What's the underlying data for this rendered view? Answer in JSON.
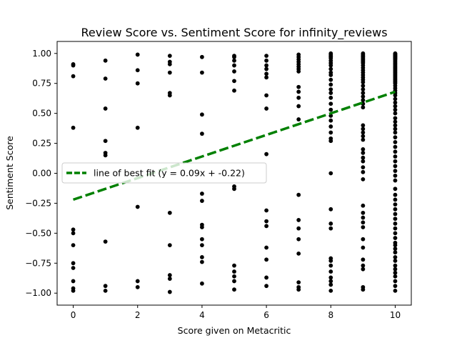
{
  "chart_data": {
    "type": "scatter",
    "title": "Review Score vs. Sentiment Score for infinity_reviews",
    "xlabel": "Score given on Metacritic",
    "ylabel": "Sentiment Score",
    "xlim": [
      -0.5,
      10.5
    ],
    "ylim": [
      -1.1,
      1.1
    ],
    "xticks": [
      0,
      2,
      4,
      6,
      8,
      10
    ],
    "yticks": [
      -1.0,
      -0.75,
      -0.5,
      -0.25,
      0.0,
      0.25,
      0.5,
      0.75,
      1.0
    ],
    "xtick_labels": [
      "0",
      "2",
      "4",
      "6",
      "8",
      "10"
    ],
    "ytick_labels": [
      "−1.00",
      "−0.75",
      "−0.50",
      "−0.25",
      "0.00",
      "0.25",
      "0.50",
      "0.75",
      "1.00"
    ],
    "grid": false,
    "legend_position": "center-left",
    "points_color": "#000000",
    "series": [
      {
        "type": "scatter",
        "points": [
          [
            0,
            0.91
          ],
          [
            0,
            0.9
          ],
          [
            0,
            0.81
          ],
          [
            0,
            0.38
          ],
          [
            0,
            -0.47
          ],
          [
            0,
            -0.5
          ],
          [
            0,
            -0.6
          ],
          [
            0,
            -0.75
          ],
          [
            0,
            -0.79
          ],
          [
            0,
            -0.9
          ],
          [
            0,
            -0.96
          ],
          [
            0,
            -0.98
          ],
          [
            1,
            0.94
          ],
          [
            1,
            0.79
          ],
          [
            1,
            0.54
          ],
          [
            1,
            0.27
          ],
          [
            1,
            0.17
          ],
          [
            1,
            0.15
          ],
          [
            1,
            -0.57
          ],
          [
            1,
            -0.94
          ],
          [
            1,
            -0.98
          ],
          [
            2,
            0.99
          ],
          [
            2,
            0.86
          ],
          [
            2,
            0.75
          ],
          [
            2,
            0.38
          ],
          [
            2,
            -0.28
          ],
          [
            2,
            -0.9
          ],
          [
            2,
            -0.95
          ],
          [
            3,
            0.98
          ],
          [
            3,
            0.93
          ],
          [
            3,
            0.91
          ],
          [
            3,
            0.84
          ],
          [
            3,
            0.67
          ],
          [
            3,
            0.65
          ],
          [
            3,
            -0.33
          ],
          [
            3,
            -0.6
          ],
          [
            3,
            -0.85
          ],
          [
            3,
            -0.88
          ],
          [
            3,
            -0.99
          ],
          [
            4,
            0.97
          ],
          [
            4,
            0.84
          ],
          [
            4,
            0.49
          ],
          [
            4,
            0.33
          ],
          [
            4,
            -0.17
          ],
          [
            4,
            -0.23
          ],
          [
            4,
            -0.43
          ],
          [
            4,
            -0.45
          ],
          [
            4,
            -0.55
          ],
          [
            4,
            -0.6
          ],
          [
            4,
            -0.7
          ],
          [
            4,
            -0.74
          ],
          [
            4,
            -0.92
          ],
          [
            5,
            0.98
          ],
          [
            5,
            0.97
          ],
          [
            5,
            0.94
          ],
          [
            5,
            0.9
          ],
          [
            5,
            0.85
          ],
          [
            5,
            0.77
          ],
          [
            5,
            0.69
          ],
          [
            5,
            -0.11
          ],
          [
            5,
            -0.13
          ],
          [
            5,
            -0.77
          ],
          [
            5,
            -0.82
          ],
          [
            5,
            -0.86
          ],
          [
            5,
            -0.9
          ],
          [
            5,
            -0.97
          ],
          [
            6,
            0.98
          ],
          [
            6,
            0.94
          ],
          [
            6,
            0.9
          ],
          [
            6,
            0.87
          ],
          [
            6,
            0.83
          ],
          [
            6,
            0.8
          ],
          [
            6,
            0.65
          ],
          [
            6,
            0.54
          ],
          [
            6,
            0.16
          ],
          [
            6,
            -0.31
          ],
          [
            6,
            -0.4
          ],
          [
            6,
            -0.44
          ],
          [
            6,
            -0.62
          ],
          [
            6,
            -0.72
          ],
          [
            6,
            -0.87
          ],
          [
            6,
            -0.94
          ],
          [
            7,
            0.99
          ],
          [
            7,
            0.97
          ],
          [
            7,
            0.95
          ],
          [
            7,
            0.93
          ],
          [
            7,
            0.91
          ],
          [
            7,
            0.89
          ],
          [
            7,
            0.87
          ],
          [
            7,
            0.85
          ],
          [
            7,
            0.72
          ],
          [
            7,
            0.68
          ],
          [
            7,
            0.63
          ],
          [
            7,
            0.56
          ],
          [
            7,
            0.45
          ],
          [
            7,
            -0.18
          ],
          [
            7,
            -0.39
          ],
          [
            7,
            -0.46
          ],
          [
            7,
            -0.55
          ],
          [
            7,
            -0.67
          ],
          [
            7,
            -0.91
          ],
          [
            7,
            -0.95
          ],
          [
            7,
            -0.97
          ],
          [
            8,
            1.0
          ],
          [
            8,
            0.99
          ],
          [
            8,
            0.98
          ],
          [
            8,
            0.97
          ],
          [
            8,
            0.96
          ],
          [
            8,
            0.94
          ],
          [
            8,
            0.92
          ],
          [
            8,
            0.9
          ],
          [
            8,
            0.87
          ],
          [
            8,
            0.84
          ],
          [
            8,
            0.82
          ],
          [
            8,
            0.78
          ],
          [
            8,
            0.74
          ],
          [
            8,
            0.7
          ],
          [
            8,
            0.67
          ],
          [
            8,
            0.63
          ],
          [
            8,
            0.58
          ],
          [
            8,
            0.53
          ],
          [
            8,
            0.48
          ],
          [
            8,
            0.44
          ],
          [
            8,
            0.39
          ],
          [
            8,
            0.34
          ],
          [
            8,
            0.29
          ],
          [
            8,
            0.27
          ],
          [
            8,
            0.0
          ],
          [
            8,
            -0.3
          ],
          [
            8,
            -0.42
          ],
          [
            8,
            -0.46
          ],
          [
            8,
            -0.71
          ],
          [
            8,
            -0.73
          ],
          [
            8,
            -0.77
          ],
          [
            8,
            -0.82
          ],
          [
            8,
            -0.87
          ],
          [
            8,
            -0.9
          ],
          [
            8,
            -0.93
          ],
          [
            8,
            -0.98
          ],
          [
            9,
            1.0
          ],
          [
            9,
            0.99
          ],
          [
            9,
            0.98
          ],
          [
            9,
            0.97
          ],
          [
            9,
            0.96
          ],
          [
            9,
            0.95
          ],
          [
            9,
            0.94
          ],
          [
            9,
            0.93
          ],
          [
            9,
            0.92
          ],
          [
            9,
            0.9
          ],
          [
            9,
            0.88
          ],
          [
            9,
            0.86
          ],
          [
            9,
            0.84
          ],
          [
            9,
            0.82
          ],
          [
            9,
            0.8
          ],
          [
            9,
            0.78
          ],
          [
            9,
            0.76
          ],
          [
            9,
            0.73
          ],
          [
            9,
            0.7
          ],
          [
            9,
            0.67
          ],
          [
            9,
            0.64
          ],
          [
            9,
            0.61
          ],
          [
            9,
            0.58
          ],
          [
            9,
            0.55
          ],
          [
            9,
            0.4
          ],
          [
            9,
            0.37
          ],
          [
            9,
            0.34
          ],
          [
            9,
            0.31
          ],
          [
            9,
            0.28
          ],
          [
            9,
            0.2
          ],
          [
            9,
            0.17
          ],
          [
            9,
            0.13
          ],
          [
            9,
            0.1
          ],
          [
            9,
            0.05
          ],
          [
            9,
            0.01
          ],
          [
            9,
            -0.05
          ],
          [
            9,
            -0.27
          ],
          [
            9,
            -0.33
          ],
          [
            9,
            -0.37
          ],
          [
            9,
            -0.41
          ],
          [
            9,
            -0.45
          ],
          [
            9,
            -0.55
          ],
          [
            9,
            -0.62
          ],
          [
            9,
            -0.72
          ],
          [
            9,
            -0.77
          ],
          [
            9,
            -0.8
          ],
          [
            9,
            -0.95
          ],
          [
            9,
            -0.97
          ],
          [
            10,
            1.0
          ],
          [
            10,
            0.995
          ],
          [
            10,
            0.99
          ],
          [
            10,
            0.985
          ],
          [
            10,
            0.98
          ],
          [
            10,
            0.975
          ],
          [
            10,
            0.97
          ],
          [
            10,
            0.965
          ],
          [
            10,
            0.96
          ],
          [
            10,
            0.955
          ],
          [
            10,
            0.95
          ],
          [
            10,
            0.94
          ],
          [
            10,
            0.93
          ],
          [
            10,
            0.92
          ],
          [
            10,
            0.91
          ],
          [
            10,
            0.9
          ],
          [
            10,
            0.89
          ],
          [
            10,
            0.88
          ],
          [
            10,
            0.87
          ],
          [
            10,
            0.86
          ],
          [
            10,
            0.85
          ],
          [
            10,
            0.84
          ],
          [
            10,
            0.83
          ],
          [
            10,
            0.82
          ],
          [
            10,
            0.81
          ],
          [
            10,
            0.8
          ],
          [
            10,
            0.79
          ],
          [
            10,
            0.78
          ],
          [
            10,
            0.77
          ],
          [
            10,
            0.76
          ],
          [
            10,
            0.75
          ],
          [
            10,
            0.73
          ],
          [
            10,
            0.71
          ],
          [
            10,
            0.69
          ],
          [
            10,
            0.67
          ],
          [
            10,
            0.65
          ],
          [
            10,
            0.62
          ],
          [
            10,
            0.59
          ],
          [
            10,
            0.56
          ],
          [
            10,
            0.53
          ],
          [
            10,
            0.5
          ],
          [
            10,
            0.46
          ],
          [
            10,
            0.43
          ],
          [
            10,
            0.4
          ],
          [
            10,
            0.37
          ],
          [
            10,
            0.34
          ],
          [
            10,
            0.3
          ],
          [
            10,
            0.26
          ],
          [
            10,
            0.22
          ],
          [
            10,
            0.18
          ],
          [
            10,
            0.14
          ],
          [
            10,
            0.1
          ],
          [
            10,
            0.06
          ],
          [
            10,
            0.02
          ],
          [
            10,
            -0.02
          ],
          [
            10,
            -0.06
          ],
          [
            10,
            -0.13
          ],
          [
            10,
            -0.18
          ],
          [
            10,
            -0.22
          ],
          [
            10,
            -0.26
          ],
          [
            10,
            -0.3
          ],
          [
            10,
            -0.34
          ],
          [
            10,
            -0.38
          ],
          [
            10,
            -0.42
          ],
          [
            10,
            -0.46
          ],
          [
            10,
            -0.5
          ],
          [
            10,
            -0.54
          ],
          [
            10,
            -0.58
          ],
          [
            10,
            -0.6
          ],
          [
            10,
            -0.63
          ],
          [
            10,
            -0.66
          ],
          [
            10,
            -0.7
          ],
          [
            10,
            -0.73
          ],
          [
            10,
            -0.77
          ],
          [
            10,
            -0.8
          ],
          [
            10,
            -0.83
          ],
          [
            10,
            -0.86
          ],
          [
            10,
            -0.9
          ],
          [
            10,
            -0.94
          ],
          [
            10,
            -0.98
          ]
        ]
      }
    ],
    "fit_line": {
      "label": "line of best fit (y = 0.09x + -0.22)",
      "slope": 0.09,
      "intercept": -0.22,
      "x_range": [
        0,
        10
      ],
      "color": "#008000",
      "style": "dashed"
    }
  }
}
